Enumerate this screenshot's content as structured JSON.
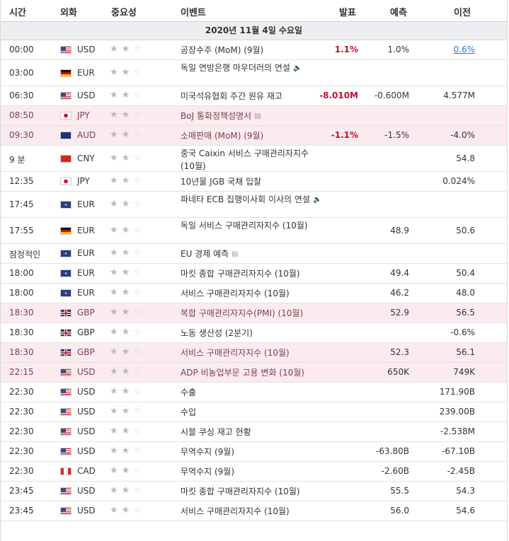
{
  "header": {
    "time": "시간",
    "currency": "외화",
    "importance": "중요성",
    "event": "이벤트",
    "actual": "발표",
    "forecast": "예측",
    "previous": "이전"
  },
  "day": "2020년 11월 4일 수요일",
  "rows": [
    {
      "time": "00:00",
      "flag": "us",
      "cur": "USD",
      "stars": 2,
      "event": "공장수주 (MoM) (9월)",
      "icon": "",
      "actual": "1.1%",
      "forecast": "1.0%",
      "previous": "0.6%",
      "prev_link": true,
      "hl": false,
      "lines": 1
    },
    {
      "time": "03:00",
      "flag": "de",
      "cur": "EUR",
      "stars": 2,
      "event": "독일 연방은행 마우더러의 연설",
      "icon": "speaker-icon",
      "actual": "",
      "forecast": "",
      "previous": "",
      "hl": false,
      "lines": 2
    },
    {
      "time": "06:30",
      "flag": "us",
      "cur": "USD",
      "stars": 2,
      "event": "미국석유협회 주간 원유 재고",
      "icon": "",
      "actual": "-8.010M",
      "forecast": "-0.600M",
      "previous": "4.577M",
      "hl": false,
      "lines": 1
    },
    {
      "time": "08:50",
      "flag": "jp",
      "cur": "JPY",
      "stars": 2,
      "event": "BoJ 통화정책성명서",
      "icon": "document-icon",
      "actual": "",
      "forecast": "",
      "previous": "",
      "hl": true,
      "lines": 1
    },
    {
      "time": "09:30",
      "flag": "au",
      "cur": "AUD",
      "stars": 2,
      "event": "소매판매 (MoM) (9월)",
      "icon": "",
      "actual": "-1.1%",
      "forecast": "-1.5%",
      "previous": "-4.0%",
      "hl": true,
      "lines": 1
    },
    {
      "time": "9 분",
      "flag": "cn",
      "cur": "CNY",
      "stars": 2,
      "event": "중국 Caixin 서비스 구매관리자지수 (10월)",
      "icon": "",
      "actual": "",
      "forecast": "",
      "previous": "54.8",
      "hl": false,
      "lines": 2
    },
    {
      "time": "12:35",
      "flag": "jp",
      "cur": "JPY",
      "stars": 2,
      "event": "10년물 JGB 국채 입찰",
      "icon": "",
      "actual": "",
      "forecast": "",
      "previous": "0.024%",
      "hl": false,
      "lines": 1
    },
    {
      "time": "17:45",
      "flag": "eu",
      "cur": "EUR",
      "stars": 2,
      "event": "파네타 ECB 집행이사회 이사의 연설",
      "icon": "speaker-icon",
      "actual": "",
      "forecast": "",
      "previous": "",
      "hl": false,
      "lines": 2
    },
    {
      "time": "17:55",
      "flag": "de",
      "cur": "EUR",
      "stars": 2,
      "event": "독일 서비스 구매관리자지수 (10월)",
      "icon": "",
      "actual": "",
      "forecast": "48.9",
      "previous": "50.6",
      "hl": false,
      "lines": 2
    },
    {
      "time": "잠정적인",
      "flag": "eu",
      "cur": "EUR",
      "stars": 2,
      "event": "EU 경제 예측",
      "icon": "document-icon",
      "actual": "",
      "forecast": "",
      "previous": "",
      "hl": false,
      "lines": 1
    },
    {
      "time": "18:00",
      "flag": "eu",
      "cur": "EUR",
      "stars": 2,
      "event": "마킷 종합 구매관리자지수 (10월)",
      "icon": "",
      "actual": "",
      "forecast": "49.4",
      "previous": "50.4",
      "hl": false,
      "lines": 1
    },
    {
      "time": "18:00",
      "flag": "eu",
      "cur": "EUR",
      "stars": 2,
      "event": "서비스 구매관리자지수 (10월)",
      "icon": "",
      "actual": "",
      "forecast": "46.2",
      "previous": "48.0",
      "hl": false,
      "lines": 1
    },
    {
      "time": "18:30",
      "flag": "gb",
      "cur": "GBP",
      "stars": 2,
      "event": "복합 구매관리자지수(PMI) (10월)",
      "icon": "",
      "actual": "",
      "forecast": "52.9",
      "previous": "56.5",
      "hl": true,
      "lines": 1
    },
    {
      "time": "18:30",
      "flag": "gb",
      "cur": "GBP",
      "stars": 2,
      "event": "노동 생산성 (2분기)",
      "icon": "",
      "actual": "",
      "forecast": "",
      "previous": "-0.6%",
      "hl": false,
      "lines": 1
    },
    {
      "time": "18:30",
      "flag": "gb",
      "cur": "GBP",
      "stars": 2,
      "event": "서비스 구매관리자지수 (10월)",
      "icon": "",
      "actual": "",
      "forecast": "52.3",
      "previous": "56.1",
      "hl": true,
      "lines": 1
    },
    {
      "time": "22:15",
      "flag": "us",
      "cur": "USD",
      "stars": 2,
      "event": "ADP 비농업부문 고용 변화 (10월)",
      "icon": "",
      "actual": "",
      "forecast": "650K",
      "previous": "749K",
      "hl": true,
      "lines": 1
    },
    {
      "time": "22:30",
      "flag": "us",
      "cur": "USD",
      "stars": 2,
      "event": "수출",
      "icon": "",
      "actual": "",
      "forecast": "",
      "previous": "171.90B",
      "hl": false,
      "lines": 1
    },
    {
      "time": "22:30",
      "flag": "us",
      "cur": "USD",
      "stars": 2,
      "event": "수입",
      "icon": "",
      "actual": "",
      "forecast": "",
      "previous": "239.00B",
      "hl": false,
      "lines": 1
    },
    {
      "time": "22:30",
      "flag": "us",
      "cur": "USD",
      "stars": 2,
      "event": "시블 쿠싱 재고 현황",
      "icon": "",
      "actual": "",
      "forecast": "",
      "previous": "-2.538M",
      "hl": false,
      "lines": 1
    },
    {
      "time": "22:30",
      "flag": "us",
      "cur": "USD",
      "stars": 2,
      "event": "무역수지 (9월)",
      "icon": "",
      "actual": "",
      "forecast": "-63.80B",
      "previous": "-67.10B",
      "hl": false,
      "lines": 1
    },
    {
      "time": "22:30",
      "flag": "ca",
      "cur": "CAD",
      "stars": 2,
      "event": "무역수지 (9월)",
      "icon": "",
      "actual": "",
      "forecast": "-2.60B",
      "previous": "-2.45B",
      "hl": false,
      "lines": 1
    },
    {
      "time": "23:45",
      "flag": "us",
      "cur": "USD",
      "stars": 2,
      "event": "마킷 종합 구매관리자지수 (10월)",
      "icon": "",
      "actual": "",
      "forecast": "55.5",
      "previous": "54.3",
      "hl": false,
      "lines": 1
    },
    {
      "time": "23:45",
      "flag": "us",
      "cur": "USD",
      "stars": 2,
      "event": "서비스 구매관리자지수 (10월)",
      "icon": "",
      "actual": "",
      "forecast": "56.0",
      "previous": "54.6",
      "hl": false,
      "lines": 1
    }
  ]
}
